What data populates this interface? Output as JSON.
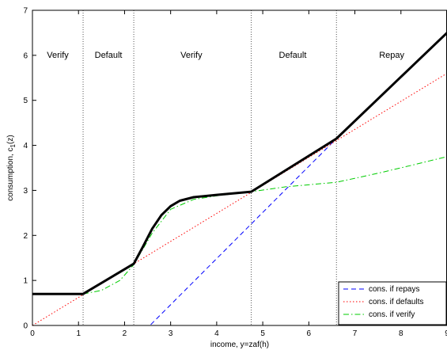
{
  "chart_data": {
    "type": "line",
    "title": "",
    "xlabel": "income, y=zaf(h)",
    "ylabel_main": "consumption, c",
    "ylabel_sub": "1",
    "ylabel_tail": "(z)",
    "xlim": [
      0,
      9
    ],
    "ylim": [
      0,
      7
    ],
    "xticks": [
      0,
      1,
      2,
      3,
      4,
      5,
      6,
      7,
      8,
      9
    ],
    "yticks": [
      0,
      1,
      2,
      3,
      4,
      5,
      6,
      7
    ],
    "grid": false,
    "legend_position": "bottom-right",
    "vlines": [
      1.1,
      2.2,
      4.75,
      6.6
    ],
    "regions": [
      {
        "label": "Verify",
        "x": 0.55
      },
      {
        "label": "Default",
        "x": 1.65
      },
      {
        "label": "Verify",
        "x": 3.45
      },
      {
        "label": "Default",
        "x": 5.65
      },
      {
        "label": "Repay",
        "x": 7.8
      }
    ],
    "series": [
      {
        "name": "cons. if repays",
        "color": "#0000ff",
        "dash": "dashed",
        "x": [
          0,
          2.55,
          6.6
        ],
        "y": [
          0,
          0,
          4.15
        ]
      },
      {
        "name": "cons. if defaults",
        "color": "#ff0000",
        "dash": "dotted",
        "x": [
          0,
          9
        ],
        "y": [
          0,
          5.6
        ]
      },
      {
        "name": "cons. if verify",
        "color": "#00cc00",
        "dash": "dashdot",
        "x": [
          1.1,
          1.5,
          1.9,
          2.2,
          2.6,
          3.0,
          3.5,
          4.0,
          4.75,
          5.5,
          6.6,
          7.5,
          8.2,
          9.0
        ],
        "y": [
          0.7,
          0.78,
          1.0,
          1.35,
          2.05,
          2.58,
          2.8,
          2.88,
          2.97,
          3.08,
          3.18,
          3.38,
          3.55,
          3.75
        ]
      },
      {
        "name": "",
        "color": "#000000",
        "dash": "solid",
        "x": [
          0,
          1.1,
          2.2,
          2.4,
          2.6,
          2.8,
          3.0,
          3.2,
          3.5,
          4.0,
          4.75,
          6.6,
          9.0
        ],
        "y": [
          0.7,
          0.7,
          1.37,
          1.75,
          2.15,
          2.45,
          2.65,
          2.77,
          2.85,
          2.9,
          2.97,
          4.15,
          6.5
        ]
      }
    ]
  }
}
